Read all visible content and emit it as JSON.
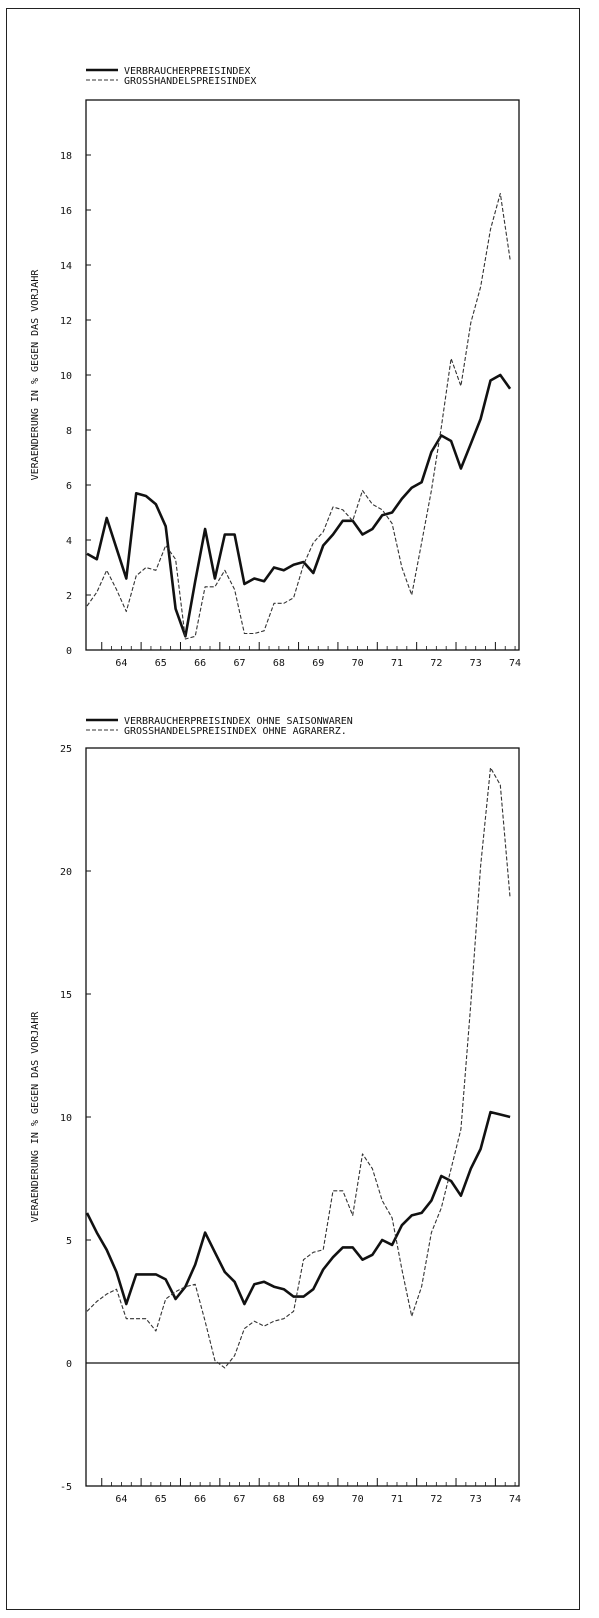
{
  "colors": {
    "ink": "#111111",
    "dashed": "#333333",
    "background": "#ffffff"
  },
  "chart_data": [
    {
      "type": "line",
      "ylabel": "VERAENDERUNG IN % GEGEN DAS VORJAHR",
      "ylim": [
        0,
        20
      ],
      "yticks": [
        0,
        2,
        4,
        6,
        8,
        10,
        12,
        14,
        16,
        18
      ],
      "xlim": [
        1963.6,
        1974.6
      ],
      "xticks": [
        "64",
        "65",
        "66",
        "67",
        "68",
        "69",
        "70",
        "71",
        "72",
        "73",
        "74"
      ],
      "x": [
        1963.625,
        1963.875,
        1964.125,
        1964.375,
        1964.625,
        1964.875,
        1965.125,
        1965.375,
        1965.625,
        1965.875,
        1966.125,
        1966.375,
        1966.625,
        1966.875,
        1967.125,
        1967.375,
        1967.625,
        1967.875,
        1968.125,
        1968.375,
        1968.625,
        1968.875,
        1969.125,
        1969.375,
        1969.625,
        1969.875,
        1970.125,
        1970.375,
        1970.625,
        1970.875,
        1971.125,
        1971.375,
        1971.625,
        1971.875,
        1972.125,
        1972.375,
        1972.625,
        1972.875,
        1973.125,
        1973.375,
        1973.625,
        1973.875,
        1974.125,
        1974.375
      ],
      "series": [
        {
          "name": "VERBRAUCHERPREISINDEX",
          "style": "solid",
          "values": [
            3.5,
            3.3,
            4.8,
            3.7,
            2.6,
            5.7,
            5.6,
            5.3,
            4.5,
            1.5,
            0.5,
            2.5,
            4.4,
            2.6,
            4.2,
            4.2,
            2.4,
            2.6,
            2.5,
            3.0,
            2.9,
            3.1,
            3.2,
            2.8,
            3.8,
            4.2,
            4.7,
            4.7,
            4.2,
            4.4,
            4.9,
            5.0,
            5.5,
            5.9,
            6.1,
            7.2,
            7.8,
            7.6,
            6.6,
            7.5,
            8.4,
            9.8,
            10.0,
            9.5
          ]
        },
        {
          "name": "GROSSHANDELSPREISINDEX",
          "style": "dashed",
          "values": [
            1.6,
            2.1,
            2.9,
            2.2,
            1.4,
            2.7,
            3.0,
            2.9,
            3.8,
            3.3,
            0.4,
            0.5,
            2.3,
            2.3,
            2.9,
            2.2,
            0.6,
            0.6,
            0.7,
            1.7,
            1.7,
            1.9,
            3.1,
            3.9,
            4.3,
            5.2,
            5.1,
            4.7,
            5.8,
            5.3,
            5.1,
            4.6,
            3.0,
            2.0,
            3.9,
            5.8,
            8.1,
            10.6,
            9.6,
            11.9,
            13.2,
            15.3,
            16.6,
            14.2
          ]
        }
      ]
    },
    {
      "type": "line",
      "ylabel": "VERAENDERUNG IN % GEGEN DAS VORJAHR",
      "ylim": [
        -5,
        25
      ],
      "yticks": [
        -5,
        0,
        5,
        10,
        15,
        20,
        25
      ],
      "xlim": [
        1963.6,
        1974.6
      ],
      "xticks": [
        "64",
        "65",
        "66",
        "67",
        "68",
        "69",
        "70",
        "71",
        "72",
        "73",
        "74"
      ],
      "x": [
        1963.625,
        1963.875,
        1964.125,
        1964.375,
        1964.625,
        1964.875,
        1965.125,
        1965.375,
        1965.625,
        1965.875,
        1966.125,
        1966.375,
        1966.625,
        1966.875,
        1967.125,
        1967.375,
        1967.625,
        1967.875,
        1968.125,
        1968.375,
        1968.625,
        1968.875,
        1969.125,
        1969.375,
        1969.625,
        1969.875,
        1970.125,
        1970.375,
        1970.625,
        1970.875,
        1971.125,
        1971.375,
        1971.625,
        1971.875,
        1972.125,
        1972.375,
        1972.625,
        1972.875,
        1973.125,
        1973.375,
        1973.625,
        1973.875,
        1974.125,
        1974.375
      ],
      "series": [
        {
          "name": "VERBRAUCHERPREISINDEX OHNE SAISONWAREN",
          "style": "solid",
          "values": [
            6.1,
            5.3,
            4.6,
            3.7,
            2.4,
            3.6,
            3.6,
            3.6,
            3.4,
            2.6,
            3.1,
            4.0,
            5.3,
            4.5,
            3.7,
            3.3,
            2.4,
            3.2,
            3.3,
            3.1,
            3.0,
            2.7,
            2.7,
            3.0,
            3.8,
            4.3,
            4.7,
            4.7,
            4.2,
            4.4,
            5.0,
            4.8,
            5.6,
            6.0,
            6.1,
            6.6,
            7.6,
            7.4,
            6.8,
            7.9,
            8.7,
            10.2,
            10.1,
            10.0
          ]
        },
        {
          "name": "GROSSHANDELSPREISINDEX OHNE AGRARERZ.",
          "style": "dashed",
          "values": [
            2.1,
            2.5,
            2.8,
            3.0,
            1.8,
            1.8,
            1.8,
            1.3,
            2.6,
            2.9,
            3.1,
            3.2,
            1.7,
            0.1,
            -0.2,
            0.3,
            1.4,
            1.7,
            1.5,
            1.7,
            1.8,
            2.1,
            4.2,
            4.5,
            4.6,
            7.0,
            7.0,
            6.0,
            8.5,
            7.9,
            6.6,
            5.9,
            3.8,
            1.9,
            3.1,
            5.3,
            6.3,
            7.9,
            9.5,
            14.6,
            20.2,
            24.2,
            23.5,
            18.9
          ]
        }
      ]
    }
  ]
}
